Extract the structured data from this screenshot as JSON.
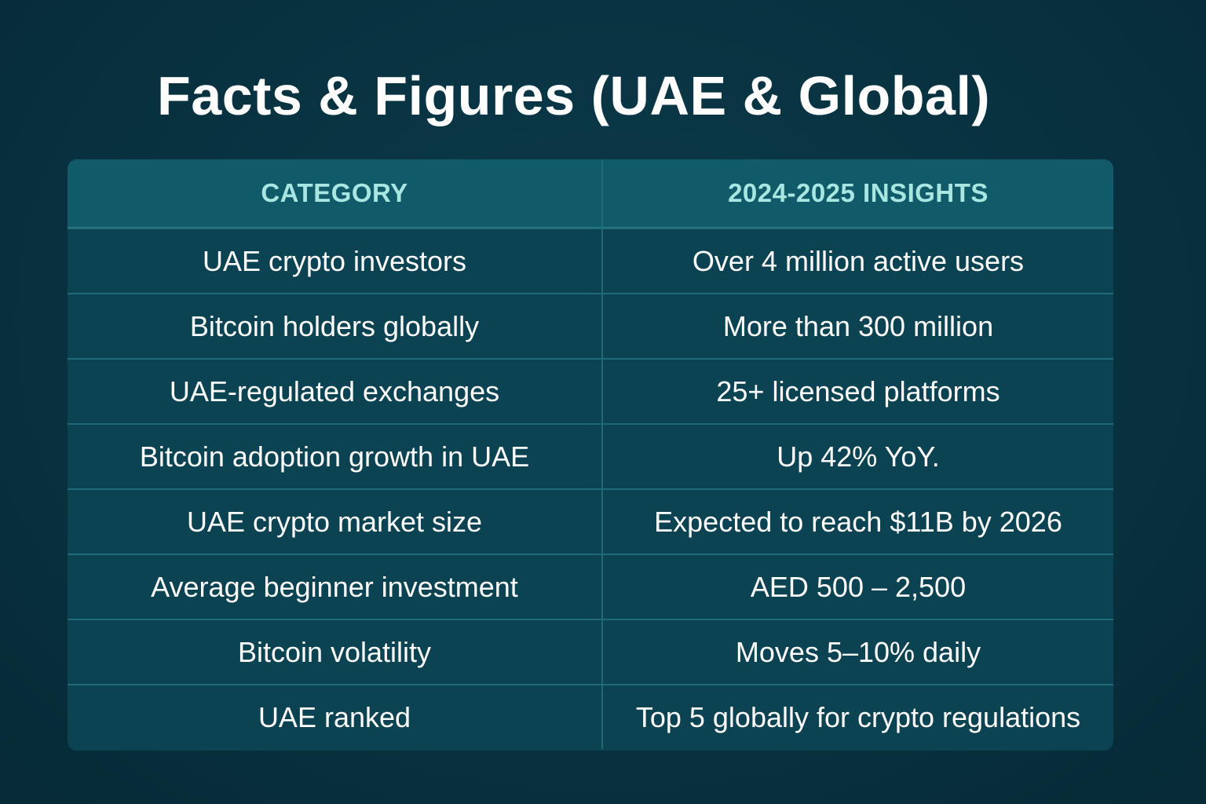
{
  "title": "Facts & Figures (UAE & Global)",
  "table": {
    "headers": [
      "CATEGORY",
      "2024-2025 INSIGHTS"
    ],
    "rows": [
      {
        "category": "UAE crypto investors",
        "insight": "Over 4 million active users"
      },
      {
        "category": "Bitcoin holders globally",
        "insight": "More than 300 million"
      },
      {
        "category": "UAE-regulated exchanges",
        "insight": "25+ licensed platforms"
      },
      {
        "category": "Bitcoin adoption growth in UAE",
        "insight": "Up 42% YoY."
      },
      {
        "category": "UAE crypto market size",
        "insight": "Expected to reach $11B by 2026"
      },
      {
        "category": "Average beginner investment",
        "insight": "AED 500 – 2,500"
      },
      {
        "category": "Bitcoin volatility",
        "insight": "Moves 5–10% daily"
      },
      {
        "category": "UAE ranked",
        "insight": "Top 5 globally for crypto regulations"
      }
    ]
  },
  "colors": {
    "background": "#083240",
    "header_bg": "#115a69",
    "header_text": "#a8e6e2",
    "row_bg": "#0b4353",
    "grid_line": "#1e6a78",
    "text": "#ffffff"
  }
}
